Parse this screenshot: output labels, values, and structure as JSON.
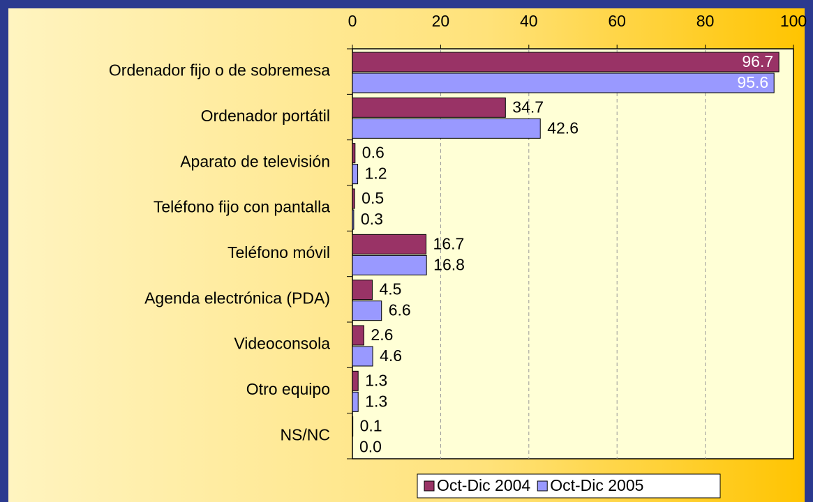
{
  "chart_data": {
    "type": "bar",
    "orientation": "horizontal",
    "categories": [
      "Ordenador fijo o de sobremesa",
      "Ordenador portátil",
      "Aparato de televisión",
      "Teléfono fijo con pantalla",
      "Teléfono móvil",
      "Agenda electrónica (PDA)",
      "Videoconsola",
      "Otro equipo",
      "NS/NC"
    ],
    "series": [
      {
        "name": "Oct-Dic 2004",
        "color": "#993366",
        "values": [
          96.7,
          34.7,
          0.6,
          0.5,
          16.7,
          4.5,
          2.6,
          1.3,
          0.1
        ],
        "value_labels": [
          "96.7",
          "34.7",
          "0.6",
          "0.5",
          "16.7",
          "4.5",
          "2.6",
          "1.3",
          "0.1"
        ]
      },
      {
        "name": "Oct-Dic 2005",
        "color": "#9999ff",
        "values": [
          95.6,
          42.6,
          1.2,
          0.3,
          16.8,
          6.6,
          4.6,
          1.3,
          0.0
        ],
        "value_labels": [
          "95.6",
          "42.6",
          "1.2",
          "0.3",
          "16.8",
          "6.6",
          "4.6",
          "1.3",
          "0.0"
        ]
      }
    ],
    "xlim": [
      0,
      100
    ],
    "xticks": [
      0,
      20,
      40,
      60,
      80,
      100
    ],
    "grid": true,
    "legend": "bottom"
  }
}
